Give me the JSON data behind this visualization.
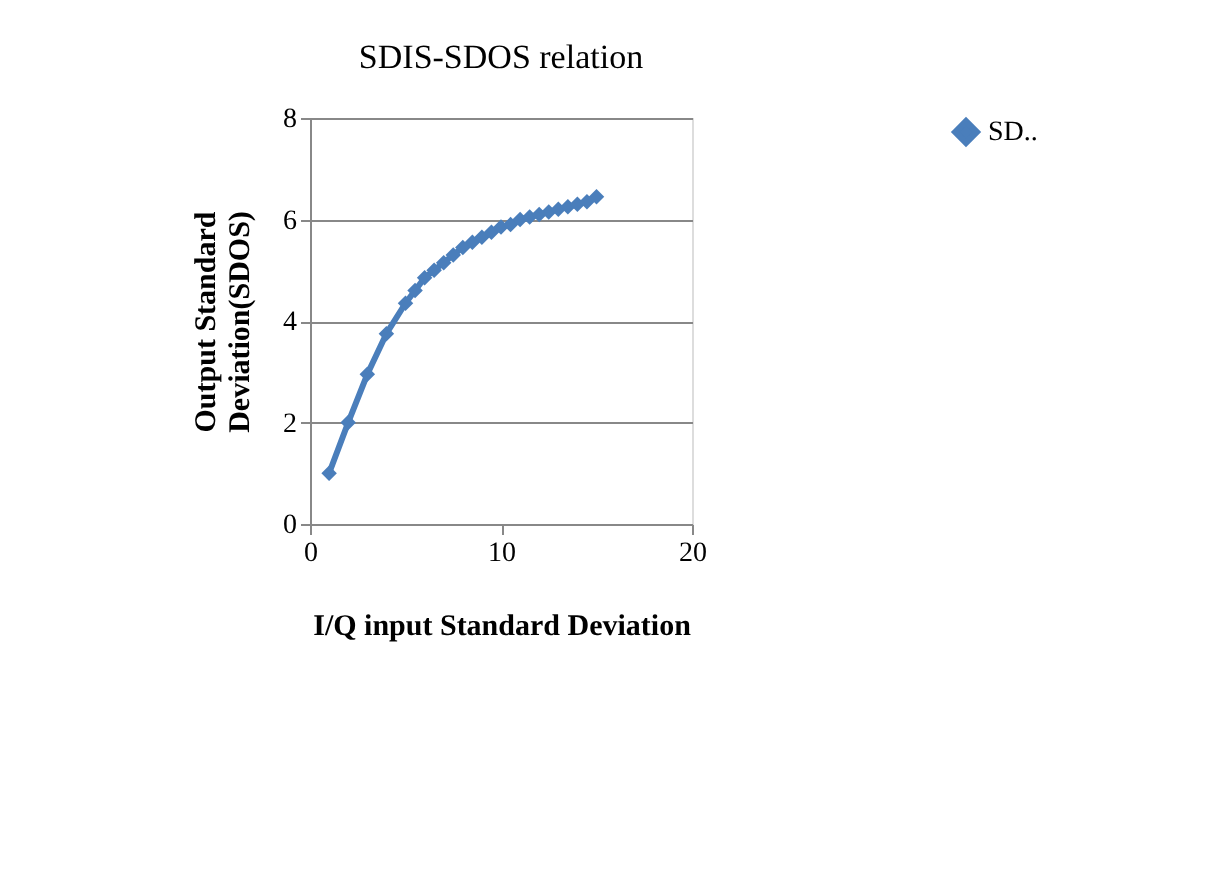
{
  "chart_data": {
    "type": "line",
    "title": "SDIS-SDOS relation",
    "xlabel": "I/Q input Standard Deviation",
    "ylabel": "Output Standard\nDeviation(SDOS)",
    "x": [
      1,
      2,
      3,
      4,
      5,
      5.5,
      6,
      6.5,
      7,
      7.5,
      8,
      8.5,
      9,
      9.5,
      10,
      10.5,
      11,
      11.5,
      12,
      12.5,
      13,
      13.5,
      14,
      14.5,
      15
    ],
    "series": [
      {
        "name": "SD..",
        "color": "#4a7ebb",
        "values": [
          1.0,
          2.0,
          2.95,
          3.75,
          4.35,
          4.6,
          4.85,
          5.0,
          5.15,
          5.3,
          5.45,
          5.55,
          5.65,
          5.75,
          5.85,
          5.9,
          6.0,
          6.05,
          6.1,
          6.15,
          6.2,
          6.25,
          6.3,
          6.35,
          6.45
        ]
      }
    ],
    "xlim": [
      0,
      20
    ],
    "xticks": [
      0,
      10,
      20
    ],
    "ylim": [
      0,
      8
    ],
    "yticks": [
      0,
      2,
      4,
      6,
      8
    ],
    "grid": "y",
    "legend": "top right",
    "marker": "diamond",
    "line_style": "solid"
  }
}
